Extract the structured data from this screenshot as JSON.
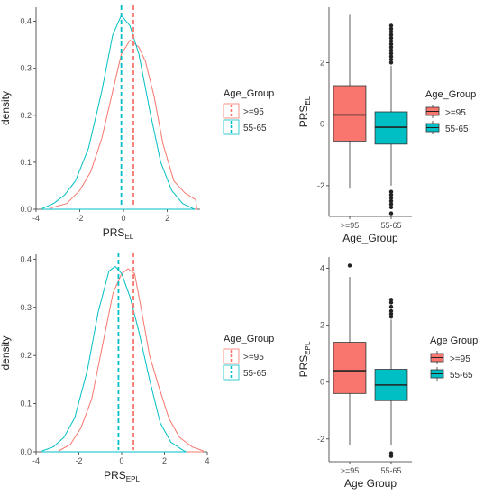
{
  "colors": {
    "ge95": "#F8766D",
    "r5565": "#00BFC4",
    "axis": "#333333",
    "ink": "#222222"
  },
  "chart_data": [
    {
      "id": "density-el",
      "type": "line",
      "xlabel_base": "PRS",
      "xlabel_sub": "EL",
      "ylabel": "density",
      "xlim": [
        -4,
        3.5
      ],
      "ylim": [
        0,
        0.43
      ],
      "xticks": [
        -4,
        -2,
        0,
        2
      ],
      "yticks": [
        0.0,
        0.1,
        0.2,
        0.3,
        0.4
      ],
      "xtick_labels": [
        "-4",
        "-2",
        "0",
        "2"
      ],
      "ytick_labels": [
        "0.0",
        "0.1",
        "0.2",
        "0.3",
        "0.4"
      ],
      "grid": false,
      "legend": {
        "title": "Age_Group",
        "position": "right",
        "entries": [
          ">=95",
          "55-65"
        ]
      },
      "series": [
        {
          "name": ">=95",
          "color": "#F8766D",
          "mean": 0.45,
          "points": [
            [
              -3.3,
              0.003
            ],
            [
              -2.6,
              0.012
            ],
            [
              -2.0,
              0.04
            ],
            [
              -1.5,
              0.08
            ],
            [
              -1.0,
              0.15
            ],
            [
              -0.5,
              0.25
            ],
            [
              -0.1,
              0.33
            ],
            [
              0.3,
              0.36
            ],
            [
              0.7,
              0.345
            ],
            [
              1.0,
              0.315
            ],
            [
              1.4,
              0.24
            ],
            [
              1.8,
              0.14
            ],
            [
              2.3,
              0.06
            ],
            [
              2.8,
              0.035
            ],
            [
              3.3,
              0.02
            ],
            [
              3.35,
              0.0
            ]
          ]
        },
        {
          "name": "55-65",
          "color": "#00BFC4",
          "mean": -0.1,
          "points": [
            [
              -3.7,
              0.002
            ],
            [
              -3.2,
              0.012
            ],
            [
              -2.7,
              0.03
            ],
            [
              -2.2,
              0.06
            ],
            [
              -1.6,
              0.13
            ],
            [
              -1.0,
              0.25
            ],
            [
              -0.5,
              0.37
            ],
            [
              -0.1,
              0.413
            ],
            [
              0.3,
              0.39
            ],
            [
              0.7,
              0.33
            ],
            [
              1.2,
              0.21
            ],
            [
              1.7,
              0.1
            ],
            [
              2.2,
              0.04
            ],
            [
              2.7,
              0.012
            ],
            [
              3.1,
              0.003
            ],
            [
              3.25,
              0.0
            ]
          ]
        }
      ]
    },
    {
      "id": "box-el",
      "type": "box",
      "xlabel": "Age_Group",
      "ylabel_base": "PRS",
      "ylabel_sub": "EL",
      "categories": [
        ">=95",
        "55-65"
      ],
      "ylim": [
        -3.0,
        3.8
      ],
      "yticks": [
        -2,
        0,
        2
      ],
      "ytick_labels": [
        "-2",
        "0",
        "2"
      ],
      "legend": {
        "title": "Age_Group",
        "position": "right",
        "entries": [
          ">=95",
          "55-65"
        ]
      },
      "boxes": [
        {
          "name": ">=95",
          "color": "#F8766D",
          "min": -2.1,
          "q1": -0.55,
          "median": 0.3,
          "q3": 1.25,
          "max": 3.55,
          "outliers": []
        },
        {
          "name": "55-65",
          "color": "#00BFC4",
          "min": -2.0,
          "q1": -0.65,
          "median": -0.1,
          "q3": 0.4,
          "max": 1.9,
          "outliers": [
            2.0,
            2.1,
            2.2,
            2.3,
            2.4,
            2.5,
            2.6,
            2.7,
            2.8,
            2.9,
            3.0,
            3.1,
            3.2,
            -2.2,
            -2.3,
            -2.4,
            -2.5,
            -2.6,
            -2.7,
            -2.9
          ]
        }
      ]
    },
    {
      "id": "density-epl",
      "type": "line",
      "xlabel_base": "PRS",
      "xlabel_sub": "EPL",
      "ylabel": "density",
      "xlim": [
        -4,
        4
      ],
      "ylim": [
        0,
        0.41
      ],
      "xticks": [
        -4,
        -2,
        0,
        2,
        4
      ],
      "yticks": [
        0.0,
        0.1,
        0.2,
        0.3,
        0.4
      ],
      "xtick_labels": [
        "-4",
        "-2",
        "0",
        "2",
        "4"
      ],
      "ytick_labels": [
        "0.0",
        "0.1",
        "0.2",
        "0.3",
        "0.4"
      ],
      "grid": false,
      "legend": {
        "title": "Age_Group",
        "position": "right",
        "entries": [
          ">=95",
          "55-65"
        ]
      },
      "series": [
        {
          "name": ">=95",
          "color": "#F8766D",
          "mean": 0.55,
          "points": [
            [
              -2.9,
              0.003
            ],
            [
              -2.4,
              0.015
            ],
            [
              -1.9,
              0.05
            ],
            [
              -1.4,
              0.11
            ],
            [
              -0.9,
              0.22
            ],
            [
              -0.4,
              0.33
            ],
            [
              0.0,
              0.37
            ],
            [
              0.3,
              0.38
            ],
            [
              0.6,
              0.37
            ],
            [
              0.9,
              0.3
            ],
            [
              1.3,
              0.2
            ],
            [
              1.7,
              0.14
            ],
            [
              2.2,
              0.07
            ],
            [
              2.7,
              0.03
            ],
            [
              3.3,
              0.01
            ],
            [
              3.8,
              0.002
            ]
          ]
        },
        {
          "name": "55-65",
          "color": "#00BFC4",
          "mean": -0.15,
          "points": [
            [
              -3.7,
              0.002
            ],
            [
              -3.2,
              0.01
            ],
            [
              -2.7,
              0.03
            ],
            [
              -2.2,
              0.07
            ],
            [
              -1.6,
              0.17
            ],
            [
              -1.1,
              0.29
            ],
            [
              -0.6,
              0.375
            ],
            [
              -0.3,
              0.385
            ],
            [
              0.0,
              0.37
            ],
            [
              0.4,
              0.32
            ],
            [
              0.8,
              0.25
            ],
            [
              1.3,
              0.15
            ],
            [
              1.8,
              0.06
            ],
            [
              2.3,
              0.02
            ],
            [
              2.8,
              0.005
            ],
            [
              3.0,
              0.0
            ]
          ]
        }
      ]
    },
    {
      "id": "box-epl",
      "type": "box",
      "xlabel": "Age Group",
      "ylabel_base": "PRS",
      "ylabel_sub": "EPL",
      "categories": [
        ">=95",
        "55-65"
      ],
      "ylim": [
        -2.8,
        4.4
      ],
      "yticks": [
        -2,
        0,
        2,
        4
      ],
      "ytick_labels": [
        "-2",
        "0",
        "2",
        "4"
      ],
      "legend": {
        "title": "Age Group",
        "position": "right",
        "entries": [
          ">=95",
          "55-65"
        ]
      },
      "boxes": [
        {
          "name": ">=95",
          "color": "#F8766D",
          "min": -2.2,
          "q1": -0.4,
          "median": 0.4,
          "q3": 1.4,
          "max": 3.7,
          "outliers": [
            4.1
          ]
        },
        {
          "name": "55-65",
          "color": "#00BFC4",
          "min": -2.2,
          "q1": -0.65,
          "median": -0.1,
          "q3": 0.45,
          "max": 2.2,
          "outliers": [
            2.3,
            2.4,
            2.5,
            2.65,
            2.8,
            2.9,
            -2.5,
            -2.6
          ]
        }
      ]
    }
  ]
}
